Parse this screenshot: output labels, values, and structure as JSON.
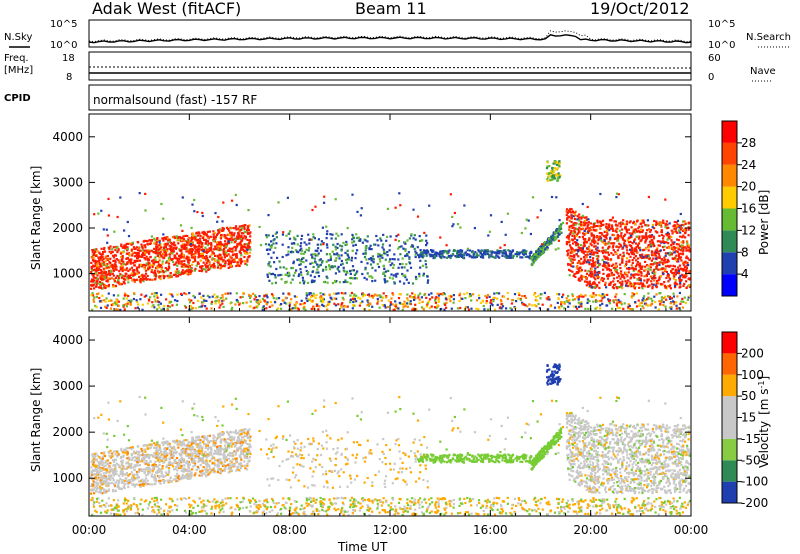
{
  "header": {
    "radar": "Adak West (fitACF)",
    "beam": "Beam 11",
    "date": "19/Oct/2012"
  },
  "top_panels": {
    "noise": {
      "left_label": "N.Sky",
      "right_label": "N.Search",
      "left_ticks": [
        "10^5",
        "10^0"
      ],
      "right_ticks": [
        "10^5",
        "10^0"
      ]
    },
    "freq": {
      "left_label_1": "Freq.",
      "left_label_2": "[MHz]",
      "right_label": "Nave",
      "left_ticks": [
        "18",
        "8"
      ],
      "right_ticks": [
        "60",
        "0"
      ]
    },
    "cpid_label": "CPID",
    "cpid_text": "normalsound (fast) -157 RF"
  },
  "chart_data": [
    {
      "type": "heatmap",
      "panel": "power",
      "ylabel": "Slant Range [km]",
      "y_ticks": [
        "1000",
        "2000",
        "3000",
        "4000"
      ],
      "y_values": [
        1000,
        2000,
        3000,
        4000
      ],
      "ylim": [
        180,
        4500
      ],
      "x_ticks": [
        "00:00",
        "04:00",
        "08:00",
        "12:00",
        "16:00",
        "20:00",
        "00:00"
      ],
      "x_values": [
        0,
        4,
        8,
        12,
        16,
        20,
        24
      ],
      "xlim": [
        0,
        24
      ],
      "colorbar": {
        "label": "Power [dB]",
        "ticks": [
          "4",
          "8",
          "12",
          "16",
          "20",
          "24",
          "28"
        ],
        "colors": [
          "#0000ff",
          "#2040b0",
          "#2e8b57",
          "#66bb33",
          "#ffcc00",
          "#ff8800",
          "#ff4400",
          "#ff0000"
        ]
      },
      "regions": [
        {
          "t0": 0.0,
          "t1": 6.4,
          "r0": 700,
          "r1": 2100,
          "level": 28,
          "note": "band"
        },
        {
          "t0": 7.0,
          "t1": 13.0,
          "r0": 900,
          "r1": 1700,
          "level": 6
        },
        {
          "t0": 13.0,
          "t1": 17.6,
          "r0": 1400,
          "r1": 1700,
          "level": 6
        },
        {
          "t0": 18.2,
          "t1": 18.8,
          "r0": 3050,
          "r1": 3500,
          "level": 14
        },
        {
          "t0": 19.0,
          "t1": 24.0,
          "r0": 700,
          "r1": 2300,
          "level": 28
        }
      ]
    },
    {
      "type": "heatmap",
      "panel": "velocity",
      "ylabel": "Slant Range [km]",
      "y_ticks": [
        "1000",
        "2000",
        "3000",
        "4000"
      ],
      "y_values": [
        1000,
        2000,
        3000,
        4000
      ],
      "ylim": [
        180,
        4500
      ],
      "x_ticks": [
        "00:00",
        "04:00",
        "08:00",
        "12:00",
        "16:00",
        "20:00",
        "00:00"
      ],
      "x_values": [
        0,
        4,
        8,
        12,
        16,
        20,
        24
      ],
      "xlim": [
        0,
        24
      ],
      "xlabel": "Time UT",
      "colorbar": {
        "label_main": "Velocity",
        "label_unit": "[m s",
        "label_exp": "-1",
        "label_close": "]",
        "ticks": [
          "200",
          "100",
          "50",
          "15",
          "-15",
          "-50",
          "-100",
          "-200"
        ],
        "colors": [
          "#1f3fb0",
          "#2e8b57",
          "#88cc44",
          "#c8c8c8",
          "#c8c8c8",
          "#ffaa00",
          "#ff6600",
          "#ff0000"
        ]
      }
    }
  ],
  "colors": {
    "power_main": "#ff2200",
    "velocity_ground": "#c8c8c8",
    "velocity_green": "#77cc33",
    "velocity_orange": "#ffaa00",
    "scatter_blue": "#2040b0"
  }
}
